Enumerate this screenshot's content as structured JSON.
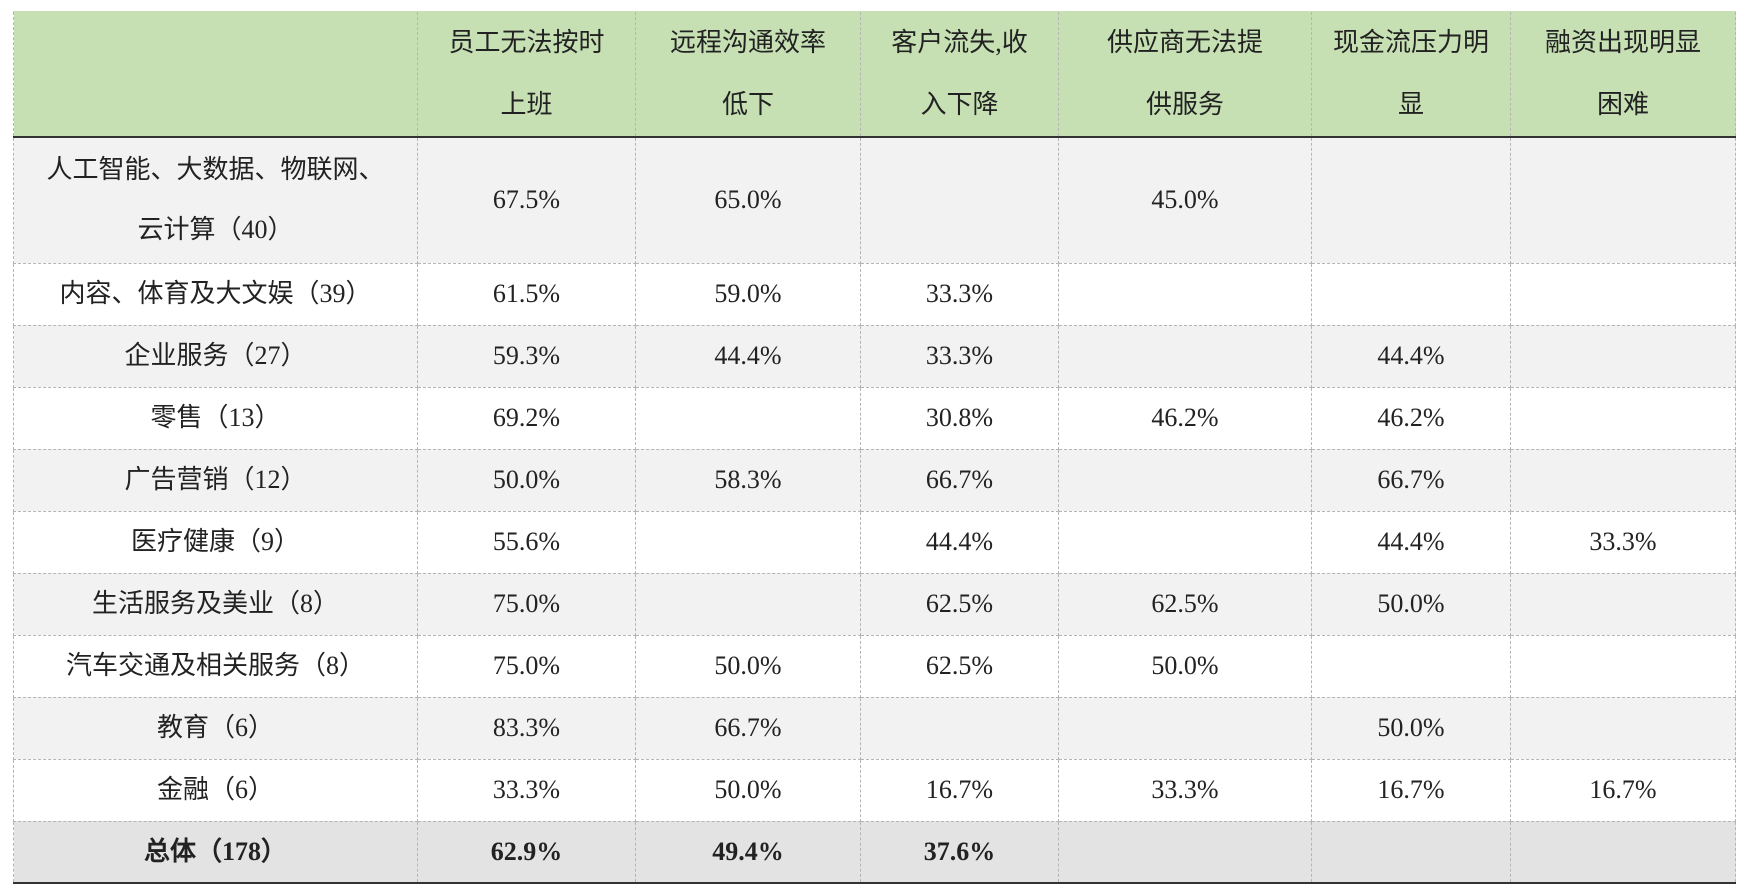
{
  "table": {
    "header": [
      null,
      "员工无法按时上班",
      "远程沟通效率低下",
      "客户流失,收入下降",
      "供应商无法提供服务",
      "现金流压力明显",
      "融资出现明显困难"
    ],
    "rows": [
      [
        "人工智能、大数据、物联网、云计算（40）",
        "67.5%",
        "65.0%",
        null,
        "45.0%",
        null,
        null
      ],
      [
        "内容、体育及大文娱（39）",
        "61.5%",
        "59.0%",
        "33.3%",
        null,
        null,
        null
      ],
      [
        "企业服务（27）",
        "59.3%",
        "44.4%",
        "33.3%",
        null,
        "44.4%",
        null
      ],
      [
        "零售（13）",
        "69.2%",
        null,
        "30.8%",
        "46.2%",
        "46.2%",
        null
      ],
      [
        "广告营销（12）",
        "50.0%",
        "58.3%",
        "66.7%",
        null,
        "66.7%",
        null
      ],
      [
        "医疗健康（9）",
        "55.6%",
        null,
        "44.4%",
        null,
        "44.4%",
        "33.3%"
      ],
      [
        "生活服务及美业（8）",
        "75.0%",
        null,
        "62.5%",
        "62.5%",
        "50.0%",
        null
      ],
      [
        "汽车交通及相关服务（8）",
        "75.0%",
        "50.0%",
        "62.5%",
        "50.0%",
        null,
        null
      ],
      [
        "教育（6）",
        "83.3%",
        "66.7%",
        null,
        null,
        "50.0%",
        null
      ],
      [
        "金融（6）",
        "33.3%",
        "50.0%",
        "16.7%",
        "33.3%",
        "16.7%",
        "16.7%"
      ]
    ],
    "total": [
      "总体（178）",
      "62.9%",
      "49.4%",
      "37.6%",
      null,
      null,
      null
    ]
  }
}
